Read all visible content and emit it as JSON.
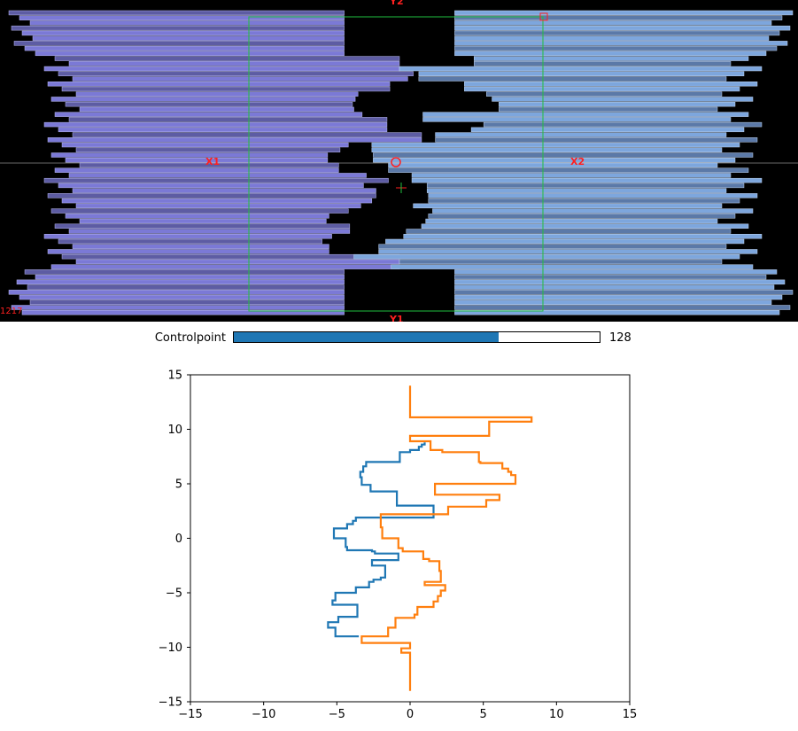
{
  "viewer": {
    "background": "#000000",
    "field_color": "#1fbf3f",
    "label_color": "#ff2020",
    "labels": {
      "y2": "Y2",
      "y1": "Y1",
      "x1": "X1",
      "x2": "X2"
    },
    "corner_text": "1217",
    "leaf_colors": {
      "left_open": "#7b79d6",
      "left_closed": "#5d5ca3",
      "right_open": "#7da6dd",
      "right_closed": "#5b79a8"
    },
    "aperture_outline": "#f0e040"
  },
  "slider": {
    "label": "Controlpoint",
    "value": 128,
    "value_text": "128",
    "fraction": 0.725,
    "fill_color": "#1f77b4"
  },
  "chart_data": {
    "type": "line",
    "title": "",
    "xlabel": "",
    "ylabel": "",
    "xlim": [
      -15,
      15
    ],
    "ylim": [
      -15,
      15
    ],
    "xticks": [
      "−15",
      "−10",
      "−5",
      "0",
      "5",
      "10",
      "15"
    ],
    "yticks": [
      "15",
      "10",
      "5",
      "0",
      "−5",
      "−10",
      "−15"
    ],
    "xtick_values": [
      -15,
      -10,
      -5,
      0,
      5,
      10,
      15
    ],
    "ytick_values": [
      15,
      10,
      5,
      0,
      -5,
      -10,
      -15
    ],
    "series": [
      {
        "color": "#1f77b4",
        "x": [
          1.0,
          1.0,
          0.8,
          0.8,
          0.6,
          0.6,
          0.0,
          0.0,
          -0.7,
          -0.7,
          -3.0,
          -3.0,
          -3.2,
          -3.2,
          -3.4,
          -3.4,
          -3.3,
          -3.3,
          -2.7,
          -2.7,
          -0.9,
          -0.9,
          1.6,
          1.6,
          -3.7,
          -3.7,
          -3.9,
          -3.9,
          -4.3,
          -4.3,
          -5.2,
          -5.2,
          -4.4,
          -4.4,
          -4.3,
          -4.3,
          -2.6,
          -2.6,
          -2.4,
          -2.4,
          -0.8,
          -0.8,
          -2.6,
          -2.6,
          -1.7,
          -1.7,
          -2.0,
          -2.0,
          -2.5,
          -2.5,
          -2.8,
          -2.8,
          -3.7,
          -3.7,
          -5.1,
          -5.1,
          -5.3,
          -5.3,
          -3.6,
          -3.6,
          -4.9,
          -4.9,
          -5.6,
          -5.6,
          -5.1,
          -5.1,
          -5.1,
          -5.1,
          -3.5
        ],
        "y": [
          8.8,
          8.6,
          8.6,
          8.4,
          8.4,
          8.1,
          8.1,
          7.9,
          7.9,
          7.0,
          7.0,
          6.6,
          6.6,
          6.1,
          6.1,
          5.6,
          5.6,
          4.9,
          4.9,
          4.3,
          4.3,
          3.0,
          3.0,
          1.9,
          1.9,
          1.6,
          1.6,
          1.3,
          1.3,
          0.9,
          0.9,
          0.0,
          0.0,
          -0.8,
          -0.8,
          -1.1,
          -1.1,
          -1.2,
          -1.2,
          -1.4,
          -1.4,
          -2.0,
          -2.0,
          -2.5,
          -2.5,
          -3.6,
          -3.6,
          -3.8,
          -3.8,
          -4.0,
          -4.0,
          -4.5,
          -4.5,
          -5.0,
          -5.0,
          -5.7,
          -5.7,
          -6.1,
          -6.1,
          -7.2,
          -7.2,
          -7.7,
          -7.7,
          -8.2,
          -8.2,
          -8.6,
          -8.6,
          -9.0,
          -9.0
        ]
      },
      {
        "color": "#ff7f0e",
        "x": [
          0.0,
          0.0,
          8.3,
          8.3,
          5.4,
          5.4,
          0.0,
          0.0,
          1.4,
          1.4,
          2.2,
          2.2,
          4.7,
          4.7,
          4.8,
          4.8,
          6.3,
          6.3,
          6.7,
          6.7,
          6.9,
          6.9,
          7.2,
          7.2,
          7.2,
          7.2,
          1.7,
          1.7,
          6.1,
          6.1,
          5.2,
          5.2,
          2.6,
          2.6,
          -2.0,
          -2.0,
          -1.9,
          -1.9,
          -0.8,
          -0.8,
          -0.5,
          -0.5,
          0.9,
          0.9,
          1.3,
          1.3,
          2.0,
          2.0,
          2.1,
          2.1,
          1.0,
          1.0,
          2.4,
          2.4,
          2.1,
          2.1,
          1.9,
          1.9,
          1.6,
          1.6,
          0.5,
          0.5,
          0.3,
          0.3,
          -1.0,
          -1.0,
          -1.5,
          -1.5,
          -3.3,
          -3.3,
          0.0,
          0.0,
          -0.6,
          -0.6,
          0.0,
          0.0
        ],
        "y": [
          14.0,
          11.1,
          11.1,
          10.7,
          10.7,
          9.4,
          9.4,
          8.9,
          8.9,
          8.1,
          8.1,
          7.9,
          7.9,
          7.0,
          7.0,
          6.9,
          6.9,
          6.4,
          6.4,
          6.1,
          6.1,
          5.8,
          5.8,
          5.5,
          5.5,
          5.0,
          5.0,
          4.0,
          4.0,
          3.5,
          3.5,
          2.9,
          2.9,
          2.2,
          2.2,
          1.0,
          1.0,
          0.0,
          0.0,
          -0.9,
          -0.9,
          -1.2,
          -1.2,
          -1.9,
          -1.9,
          -2.1,
          -2.1,
          -3.0,
          -3.0,
          -4.0,
          -4.0,
          -4.3,
          -4.3,
          -4.8,
          -4.8,
          -5.3,
          -5.3,
          -5.8,
          -5.8,
          -6.3,
          -6.3,
          -7.0,
          -7.0,
          -7.3,
          -7.3,
          -8.2,
          -8.2,
          -9.0,
          -9.0,
          -9.6,
          -9.6,
          -10.1,
          -10.1,
          -10.5,
          -10.5,
          -14.0
        ]
      }
    ]
  }
}
